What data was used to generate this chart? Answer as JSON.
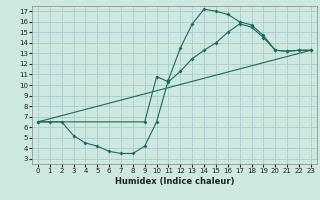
{
  "xlabel": "Humidex (Indice chaleur)",
  "background_color": "#cce8e0",
  "line_color": "#1a6b5a",
  "grid_color": "#aacccc",
  "xlim": [
    -0.5,
    23.5
  ],
  "ylim": [
    2.5,
    17.5
  ],
  "xticks": [
    0,
    1,
    2,
    3,
    4,
    5,
    6,
    7,
    8,
    9,
    10,
    11,
    12,
    13,
    14,
    15,
    16,
    17,
    18,
    19,
    20,
    21,
    22,
    23
  ],
  "yticks": [
    3,
    4,
    5,
    6,
    7,
    8,
    9,
    10,
    11,
    12,
    13,
    14,
    15,
    16,
    17
  ],
  "line1_x": [
    0,
    1,
    2,
    3,
    4,
    5,
    6,
    7,
    8,
    9,
    10,
    11,
    12,
    13,
    14,
    15,
    16,
    17,
    18,
    19,
    20,
    21,
    22,
    23
  ],
  "line1_y": [
    6.5,
    6.5,
    6.5,
    5.2,
    4.5,
    4.2,
    3.7,
    3.5,
    3.5,
    4.2,
    6.5,
    10.5,
    13.5,
    15.8,
    17.2,
    17.0,
    16.7,
    16.0,
    15.7,
    14.7,
    13.3,
    13.2,
    13.3,
    13.3
  ],
  "line2_x": [
    0,
    9,
    10,
    11,
    12,
    13,
    14,
    15,
    16,
    17,
    18,
    19,
    20,
    21,
    22,
    23
  ],
  "line2_y": [
    6.5,
    6.5,
    10.8,
    10.3,
    11.3,
    12.5,
    13.3,
    14.0,
    15.0,
    15.8,
    15.5,
    14.5,
    13.3,
    13.2,
    13.3,
    13.3
  ],
  "line3_x": [
    0,
    23
  ],
  "line3_y": [
    6.5,
    13.3
  ],
  "xlabel_fontsize": 6.0,
  "tick_fontsize": 5.0
}
